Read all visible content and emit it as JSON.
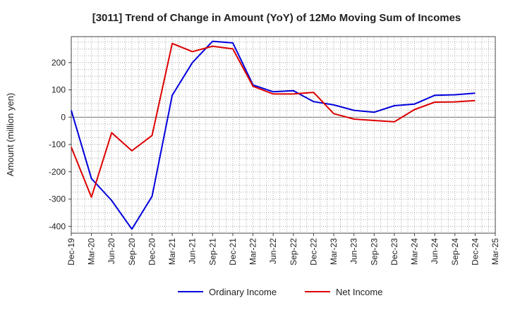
{
  "chart_data": {
    "type": "line",
    "title": "[3011]  Trend of Change in Amount (YoY) of 12Mo Moving Sum of Incomes",
    "xlabel": "",
    "ylabel": "Amount (million yen)",
    "categories": [
      "Dec-19",
      "Mar-20",
      "Jun-20",
      "Sep-20",
      "Dec-20",
      "Mar-21",
      "Jun-21",
      "Sep-21",
      "Dec-21",
      "Mar-22",
      "Jun-22",
      "Sep-22",
      "Dec-22",
      "Mar-23",
      "Jun-23",
      "Sep-23",
      "Dec-23",
      "Mar-24",
      "Jun-24",
      "Sep-24",
      "Dec-24",
      "Mar-25"
    ],
    "yticks": [
      200,
      100,
      0,
      -100,
      -200,
      -300,
      -400
    ],
    "ylim": [
      -425,
      295
    ],
    "grid": true,
    "legend_position": "bottom",
    "series": [
      {
        "name": "Ordinary Income",
        "color": "#0000dd",
        "values": [
          25,
          -225,
          -305,
          -410,
          -290,
          80,
          200,
          278,
          272,
          118,
          93,
          97,
          57,
          45,
          25,
          18,
          42,
          48,
          80,
          82,
          88,
          null
        ]
      },
      {
        "name": "Net Income",
        "color": "#dd0000",
        "values": [
          -110,
          -293,
          -57,
          -123,
          -67,
          270,
          240,
          260,
          250,
          113,
          85,
          85,
          91,
          13,
          -7,
          -12,
          -17,
          28,
          55,
          56,
          61,
          null
        ]
      }
    ]
  }
}
